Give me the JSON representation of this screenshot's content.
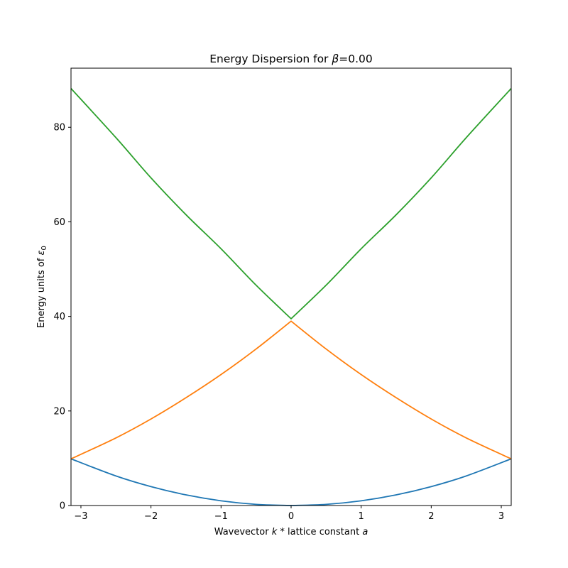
{
  "chart_data": {
    "type": "line",
    "title": {
      "prefix": "Energy Dispersion for ",
      "symbol": "β",
      "suffix": "=0.00"
    },
    "xlabel": {
      "a": "Wavevector ",
      "k": "k",
      "b": " * lattice constant ",
      "c": "a"
    },
    "ylabel": {
      "a": "Energy units of ",
      "eps": "ε",
      "sub": "0"
    },
    "xlim": [
      -3.1416,
      3.1416
    ],
    "ylim": [
      0,
      92.5
    ],
    "x_ticks": [
      -3,
      -2,
      -1,
      0,
      1,
      2,
      3
    ],
    "x_tick_labels": [
      "−3",
      "−2",
      "−1",
      "0",
      "1",
      "2",
      "3"
    ],
    "y_ticks": [
      0,
      20,
      40,
      60,
      80
    ],
    "y_tick_labels": [
      "0",
      "20",
      "40",
      "60",
      "80"
    ],
    "grid": false,
    "legend": "none",
    "series": [
      {
        "color": "#1f77b4",
        "x": [
          -3.1416,
          -2.5,
          -2.0,
          -1.5,
          -1.0,
          -0.5,
          0,
          0.5,
          1.0,
          1.5,
          2.0,
          2.5,
          3.1416
        ],
        "y": [
          9.87,
          6.25,
          4.0,
          2.25,
          1.0,
          0.25,
          0,
          0.25,
          1.0,
          2.25,
          4.0,
          6.25,
          9.87
        ]
      },
      {
        "color": "#ff7f0e",
        "x": [
          -3.1416,
          -2.5,
          -2.0,
          -1.5,
          -1.0,
          -0.5,
          0,
          0.5,
          1.0,
          1.5,
          2.0,
          2.5,
          3.1416
        ],
        "y": [
          9.87,
          14.3,
          18.3,
          22.8,
          27.7,
          33.1,
          39.0,
          33.1,
          27.7,
          22.8,
          18.3,
          14.3,
          9.87
        ]
      },
      {
        "color": "#2ca02c",
        "x": [
          -3.1416,
          -2.5,
          -2.0,
          -1.5,
          -1.0,
          -0.5,
          0,
          0.5,
          1.0,
          1.5,
          2.0,
          2.5,
          3.1416
        ],
        "y": [
          88.2,
          77.8,
          69.3,
          61.5,
          54.3,
          46.6,
          39.5,
          46.6,
          54.3,
          61.5,
          69.3,
          77.8,
          88.2
        ]
      }
    ]
  }
}
